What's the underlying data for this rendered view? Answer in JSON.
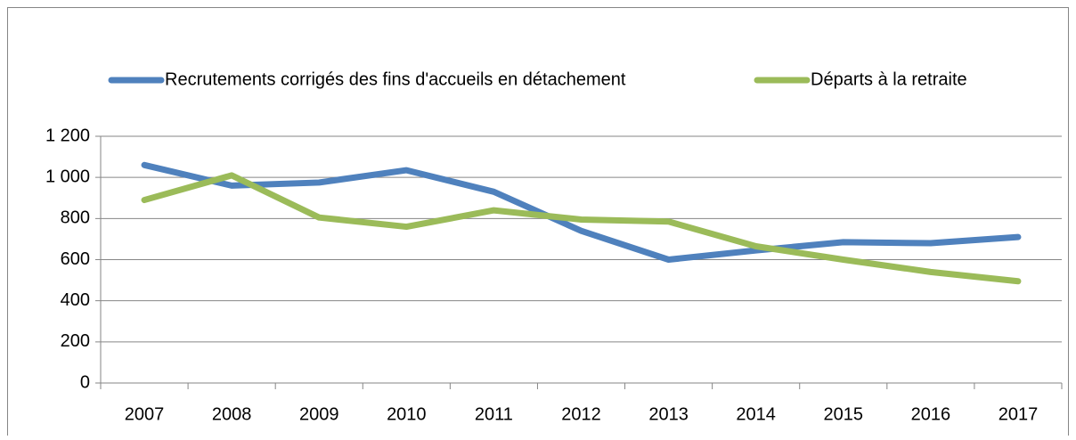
{
  "chart_data": {
    "type": "line",
    "categories": [
      "2007",
      "2008",
      "2009",
      "2010",
      "2011",
      "2012",
      "2013",
      "2014",
      "2015",
      "2016",
      "2017"
    ],
    "series": [
      {
        "name": "Recrutements corrigés des fins d'accueils en détachement",
        "color": "#4f81bd",
        "values": [
          1060,
          960,
          975,
          1035,
          930,
          740,
          600,
          645,
          685,
          680,
          710
        ]
      },
      {
        "name": "Départs à la retraite",
        "color": "#9bbb59",
        "values": [
          890,
          1010,
          805,
          760,
          840,
          795,
          785,
          665,
          600,
          540,
          495
        ]
      }
    ],
    "ylim": [
      0,
      1200
    ],
    "yticks": [
      0,
      200,
      400,
      600,
      800,
      {
        "value": 1000,
        "label": "1 000"
      },
      {
        "value": 1200,
        "label": "1 200"
      }
    ],
    "grid": true,
    "legend": "top"
  }
}
